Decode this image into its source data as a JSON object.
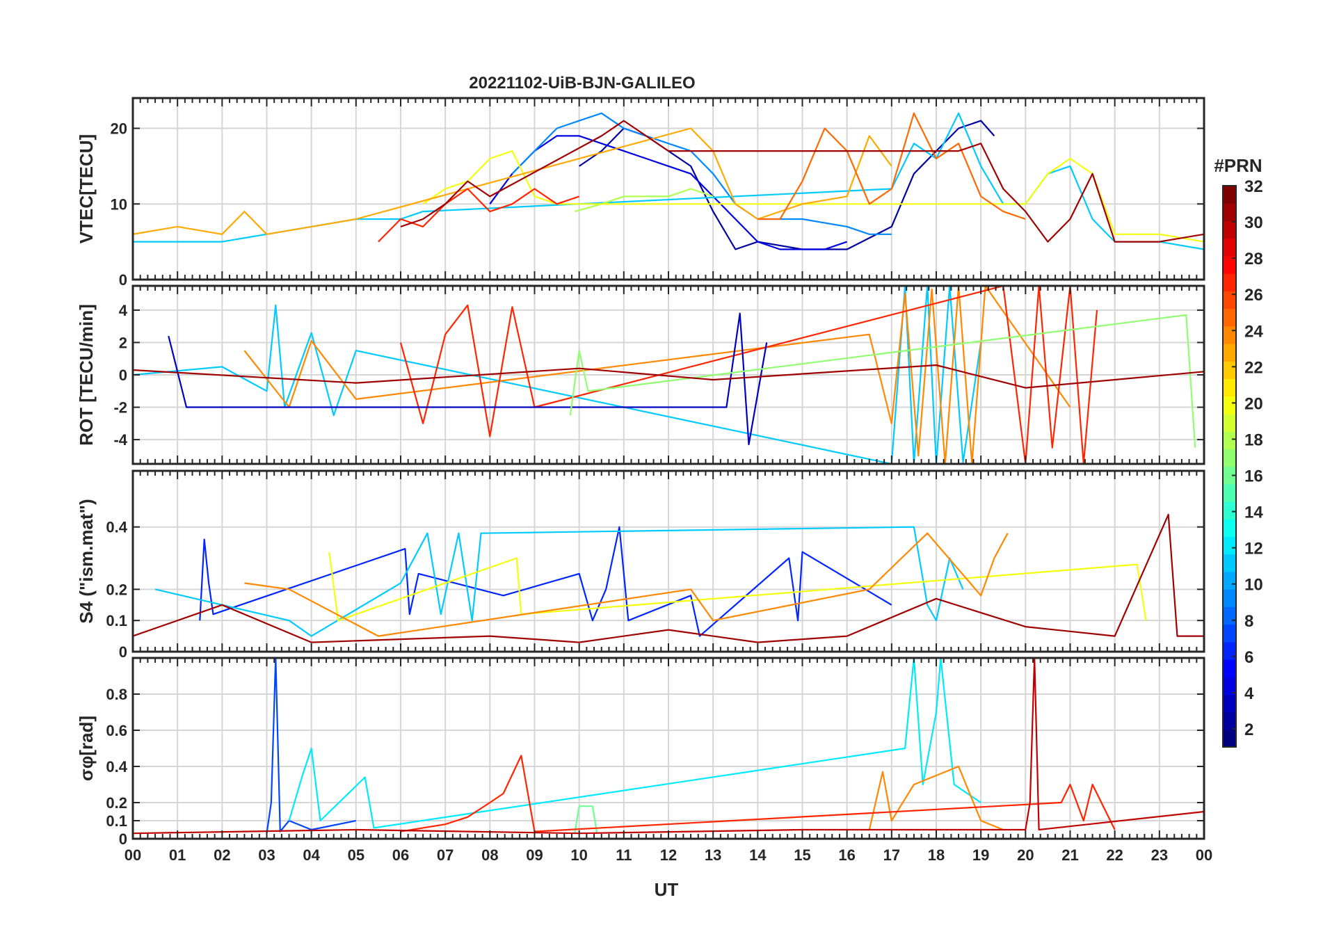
{
  "chart_data": {
    "type": "line",
    "title": "20221102-UiB-BJN-GALILEO",
    "xlabel": "UT",
    "x_ticks": [
      "00",
      "01",
      "02",
      "03",
      "04",
      "05",
      "06",
      "07",
      "08",
      "09",
      "10",
      "11",
      "12",
      "13",
      "14",
      "15",
      "16",
      "17",
      "18",
      "19",
      "20",
      "21",
      "22",
      "23",
      "00"
    ],
    "xlim": [
      0,
      24
    ],
    "grid": true,
    "colorbar": {
      "title": "#PRN",
      "range": [
        1,
        32
      ],
      "ticks": [
        "2",
        "4",
        "6",
        "8",
        "10",
        "12",
        "14",
        "16",
        "18",
        "20",
        "22",
        "24",
        "26",
        "28",
        "30",
        "32"
      ],
      "colormap": "jet",
      "placement": "right"
    },
    "panels": [
      {
        "ylabel": "VTEC[TECU]",
        "ylim": [
          0,
          24
        ],
        "yticks": [
          "0",
          "10",
          "20"
        ],
        "series": [
          {
            "prn": 2,
            "x": [
              10,
              10.5,
              11,
              11.5,
              12,
              12.5,
              13,
              13.5,
              14,
              15,
              16,
              17,
              17.5,
              18,
              18.5,
              19,
              19.3
            ],
            "y": [
              15,
              17,
              20,
              19,
              17,
              15,
              9,
              4,
              5,
              4,
              4,
              7,
              14,
              17,
              20,
              21,
              19
            ]
          },
          {
            "prn": 4,
            "x": [
              8,
              8.5,
              9,
              9.5,
              10,
              10.5,
              11,
              11.5,
              12,
              12.5,
              13,
              13.5,
              14,
              14.5,
              15,
              15.5,
              16
            ],
            "y": [
              10,
              14,
              17,
              19,
              19,
              18,
              17,
              16,
              15,
              14,
              11,
              8,
              5,
              4,
              4,
              4,
              5
            ]
          },
          {
            "prn": 9,
            "x": [
              8.5,
              9,
              9.5,
              10,
              10.5,
              11,
              11.5,
              12,
              12.5,
              13,
              13.5,
              14,
              15,
              16,
              16.5,
              17
            ],
            "y": [
              14,
              17,
              20,
              21,
              22,
              20,
              19,
              18,
              17,
              14,
              10,
              8,
              8,
              7,
              6,
              6
            ]
          },
          {
            "prn": 11,
            "x": [
              0,
              1,
              2,
              3,
              4,
              5,
              5.5,
              6,
              6.5,
              17,
              17.5,
              18,
              18.5,
              19,
              19.5,
              20,
              20.5,
              21,
              21.5,
              22,
              23,
              24
            ],
            "y": [
              5,
              5,
              5,
              6,
              7,
              8,
              8,
              8,
              9,
              12,
              18,
              16,
              22,
              15,
              10,
              10,
              14,
              15,
              8,
              5,
              5,
              4
            ]
          },
          {
            "prn": 18,
            "x": [
              9.9,
              10.5,
              11,
              11.5,
              12,
              12.5,
              13
            ],
            "y": [
              9,
              10,
              11,
              11,
              11,
              12,
              11
            ]
          },
          {
            "prn": 20,
            "x": [
              6.5,
              7,
              7.5,
              8,
              8.5,
              9,
              9.5,
              20,
              20.5,
              21,
              21.5,
              22,
              23,
              24
            ],
            "y": [
              10,
              12,
              13,
              16,
              17,
              11,
              10,
              10,
              14,
              16,
              14,
              6,
              6,
              5
            ]
          },
          {
            "prn": 23,
            "x": [
              0,
              1,
              2,
              2.5,
              3,
              4,
              5,
              12.5,
              13,
              13.5,
              14,
              15,
              16,
              16.5,
              17
            ],
            "y": [
              6,
              7,
              6,
              9,
              6,
              7,
              8,
              20,
              17,
              10,
              8,
              10,
              11,
              19,
              15
            ]
          },
          {
            "prn": 25,
            "x": [
              14,
              14.5,
              15,
              15.5,
              16,
              16.5,
              17,
              17.5,
              18,
              18.5,
              19,
              19.5,
              20
            ],
            "y": [
              8,
              8,
              13,
              20,
              17,
              10,
              12,
              22,
              16,
              18,
              11,
              9,
              8
            ]
          },
          {
            "prn": 27,
            "x": [
              5.5,
              6,
              6.5,
              7,
              7.5,
              8,
              8.5,
              9,
              9.5,
              10
            ],
            "y": [
              5,
              8,
              7,
              10,
              12,
              9,
              10,
              12,
              10,
              11
            ]
          },
          {
            "prn": 31,
            "x": [
              6,
              6.5,
              7,
              7.5,
              8,
              10.5,
              11,
              11.5,
              12,
              18.5,
              19,
              19.5,
              20,
              20.5,
              21,
              21.5,
              22,
              23,
              24
            ],
            "y": [
              7,
              8,
              10,
              13,
              11,
              19,
              21,
              19,
              17,
              17,
              18,
              12,
              9,
              5,
              8,
              14,
              5,
              5,
              6
            ]
          }
        ]
      },
      {
        "ylabel": "ROT [TECU/min]",
        "ylim": [
          -5.5,
          5.5
        ],
        "yticks": [
          "-4",
          "-2",
          "0",
          "2",
          "4"
        ],
        "series": [
          {
            "prn": 11,
            "x": [
              0,
              2,
              3,
              3.2,
              3.4,
              4,
              4.5,
              5,
              17,
              17.3,
              17.5,
              17.8,
              18,
              18.3,
              18.6,
              19
            ],
            "y": [
              0,
              0.5,
              -1,
              4.3,
              -2,
              2.6,
              -2.5,
              1.5,
              -5.5,
              5.5,
              -5.5,
              5.5,
              -5.5,
              5.5,
              -5.4,
              2
            ]
          },
          {
            "prn": 24,
            "x": [
              2.5,
              3.5,
              4,
              5,
              16.5,
              17,
              17.3,
              17.6,
              17.9,
              18.2,
              18.5,
              18.8,
              19.1,
              21
            ],
            "y": [
              1.5,
              -2,
              2.1,
              -1.5,
              2.5,
              -3,
              5,
              -5,
              5.3,
              -5.5,
              5.5,
              -5.5,
              5.5,
              -2
            ]
          },
          {
            "prn": 27,
            "x": [
              6,
              6.5,
              7,
              7.5,
              8,
              8.5,
              9,
              19.5,
              20,
              20.3,
              20.6,
              21,
              21.3,
              21.6
            ],
            "y": [
              2,
              -3,
              2.5,
              4.3,
              -3.8,
              4.2,
              -2,
              5.5,
              -5.5,
              5.5,
              -4.5,
              5.5,
              -5.5,
              4
            ]
          },
          {
            "prn": 3,
            "x": [
              0.8,
              1.2,
              13.3,
              13.6,
              13.8,
              14.2
            ],
            "y": [
              2.4,
              -2,
              -2,
              3.8,
              -4.3,
              2
            ]
          },
          {
            "prn": 17,
            "x": [
              9.8,
              10,
              10.2,
              23.6,
              23.8
            ],
            "y": [
              -2.5,
              1.5,
              -1,
              3.7,
              -4.5
            ]
          },
          {
            "prn": 31,
            "x": [
              0,
              5,
              10,
              13,
              18,
              20,
              24
            ],
            "y": [
              0.3,
              -0.5,
              0.4,
              -0.3,
              0.6,
              -0.8,
              0.2
            ]
          }
        ]
      },
      {
        "ylabel": "S4 (\"ism.mat\")",
        "ylim": [
          0,
          0.58
        ],
        "yticks": [
          "0",
          "0.1",
          "0.2",
          "0.4"
        ],
        "series": [
          {
            "prn": 6,
            "x": [
              1.5,
              1.6,
              1.7,
              1.8,
              6.1,
              6.2,
              6.4,
              8.3,
              10,
              10.3,
              10.6,
              10.9,
              11.1,
              12.5,
              12.7,
              14.7,
              14.9,
              15,
              17
            ],
            "y": [
              0.1,
              0.36,
              0.22,
              0.12,
              0.33,
              0.12,
              0.25,
              0.18,
              0.25,
              0.1,
              0.2,
              0.4,
              0.1,
              0.18,
              0.05,
              0.3,
              0.1,
              0.32,
              0.15
            ]
          },
          {
            "prn": 11,
            "x": [
              0.5,
              3.5,
              4,
              6,
              6.6,
              6.9,
              7.3,
              7.6,
              7.8,
              17.5,
              17.8,
              18,
              18.3,
              18.6
            ],
            "y": [
              0.2,
              0.1,
              0.05,
              0.22,
              0.38,
              0.12,
              0.38,
              0.1,
              0.38,
              0.4,
              0.15,
              0.1,
              0.3,
              0.2
            ]
          },
          {
            "prn": 20,
            "x": [
              4.4,
              4.6,
              8.6,
              8.7,
              22.5,
              22.7
            ],
            "y": [
              0.32,
              0.1,
              0.3,
              0.12,
              0.28,
              0.1
            ]
          },
          {
            "prn": 24,
            "x": [
              2.5,
              3.5,
              5.5,
              12.5,
              13,
              16.5,
              17.8,
              19,
              19.3,
              19.6
            ],
            "y": [
              0.22,
              0.2,
              0.05,
              0.2,
              0.1,
              0.2,
              0.38,
              0.18,
              0.3,
              0.38
            ]
          },
          {
            "prn": 31,
            "x": [
              0,
              2,
              4,
              6,
              8,
              10,
              12,
              14,
              16,
              18,
              20,
              22,
              23.2,
              23.4,
              24
            ],
            "y": [
              0.05,
              0.15,
              0.03,
              0.04,
              0.05,
              0.03,
              0.07,
              0.03,
              0.05,
              0.17,
              0.08,
              0.05,
              0.44,
              0.05,
              0.05
            ]
          }
        ]
      },
      {
        "ylabel": "σφ[rad]",
        "ylim": [
          0,
          1
        ],
        "yticks": [
          "0",
          "0.1",
          "0.2",
          "0.4",
          "0.6",
          "0.8"
        ],
        "series": [
          {
            "prn": 7,
            "x": [
              3,
              3.1,
              3.2,
              3.3,
              3.5,
              4,
              5
            ],
            "y": [
              0.03,
              0.2,
              1.0,
              0.04,
              0.1,
              0.05,
              0.1
            ]
          },
          {
            "prn": 12,
            "x": [
              3.5,
              3.8,
              4,
              4.2,
              5.2,
              5.4,
              17.3,
              17.5,
              17.7,
              18,
              18.1,
              18.4,
              19
            ],
            "y": [
              0.1,
              0.35,
              0.5,
              0.1,
              0.34,
              0.06,
              0.5,
              1.0,
              0.3,
              0.7,
              1.0,
              0.3,
              0.2
            ]
          },
          {
            "prn": 16,
            "x": [
              9.9,
              10,
              10.3,
              10.4
            ],
            "y": [
              0.03,
              0.18,
              0.18,
              0.03
            ]
          },
          {
            "prn": 24,
            "x": [
              16.5,
              16.8,
              17,
              17.5,
              18,
              18.5,
              19,
              19.5
            ],
            "y": [
              0.05,
              0.37,
              0.1,
              0.3,
              0.35,
              0.4,
              0.1,
              0.05
            ]
          },
          {
            "prn": 27,
            "x": [
              6,
              7,
              7.5,
              8,
              8.3,
              8.7,
              9,
              20.8,
              21,
              21.3,
              21.5,
              22
            ],
            "y": [
              0.04,
              0.08,
              0.12,
              0.2,
              0.25,
              0.46,
              0.04,
              0.2,
              0.3,
              0.1,
              0.3,
              0.05
            ]
          },
          {
            "prn": 30,
            "x": [
              0,
              5,
              10,
              15,
              20,
              20.1,
              20.2,
              20.3,
              24
            ],
            "y": [
              0.03,
              0.05,
              0.03,
              0.05,
              0.05,
              0.2,
              1.0,
              0.05,
              0.15
            ]
          }
        ]
      }
    ]
  }
}
